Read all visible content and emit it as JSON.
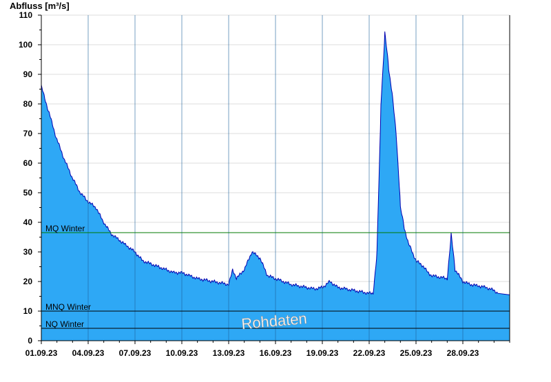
{
  "chart_data": {
    "type": "area",
    "title": "",
    "ylabel": "Abfluss [m³/s]",
    "xlabel": "",
    "ylim": [
      0,
      110
    ],
    "yticks": [
      0,
      10,
      20,
      30,
      40,
      50,
      60,
      70,
      80,
      90,
      100,
      110
    ],
    "xlim": [
      "01.09.23",
      "30.09.23"
    ],
    "xticks": [
      "01.09.23",
      "04.09.23",
      "07.09.23",
      "10.09.23",
      "13.09.23",
      "16.09.23",
      "19.09.23",
      "22.09.23",
      "25.09.23",
      "28.09.23"
    ],
    "grid": "horizontal",
    "colors": {
      "fill": "#2ea8f5",
      "line": "#0000b0",
      "mq": "#007a00",
      "ref": "#000000"
    },
    "reference_lines": [
      {
        "label": "MQ Winter",
        "value": 36.5
      },
      {
        "label": "MNQ Winter",
        "value": 10.0
      },
      {
        "label": "NQ Winter",
        "value": 4.2
      }
    ],
    "annotation": "Rohdaten",
    "series": [
      {
        "x": [
          "01.09.23 00:00",
          "01.09.23 12:00",
          "02.09.23 00:00",
          "02.09.23 12:00",
          "03.09.23 00:00",
          "03.09.23 12:00",
          "04.09.23 00:00",
          "04.09.23 12:00",
          "05.09.23 00:00",
          "05.09.23 12:00",
          "06.09.23 00:00",
          "06.09.23 12:00",
          "07.09.23 00:00",
          "07.09.23 12:00",
          "08.09.23 00:00",
          "08.09.23 12:00",
          "09.09.23 00:00",
          "09.09.23 12:00",
          "10.09.23 00:00",
          "10.09.23 12:00",
          "11.09.23 00:00",
          "11.09.23 12:00",
          "12.09.23 00:00",
          "12.09.23 12:00",
          "13.09.23 00:00",
          "13.09.23 06:00",
          "13.09.23 12:00",
          "14.09.23 00:00",
          "14.09.23 12:00",
          "15.09.23 00:00",
          "15.09.23 12:00",
          "16.09.23 00:00",
          "16.09.23 12:00",
          "17.09.23 00:00",
          "17.09.23 12:00",
          "18.09.23 00:00",
          "18.09.23 12:00",
          "19.09.23 00:00",
          "19.09.23 12:00",
          "20.09.23 00:00",
          "20.09.23 12:00",
          "21.09.23 00:00",
          "21.09.23 12:00",
          "22.09.23 00:00",
          "22.09.23 06:00",
          "22.09.23 12:00",
          "22.09.23 18:00",
          "23.09.23 00:00",
          "23.09.23 06:00",
          "23.09.23 12:00",
          "23.09.23 18:00",
          "24.09.23 00:00",
          "24.09.23 06:00",
          "24.09.23 12:00",
          "24.09.23 18:00",
          "25.09.23 00:00",
          "25.09.23 06:00",
          "25.09.23 12:00",
          "25.09.23 18:00",
          "26.09.23 00:00",
          "26.09.23 12:00",
          "27.09.23 00:00",
          "27.09.23 06:00",
          "27.09.23 12:00",
          "27.09.23 18:00",
          "28.09.23 00:00",
          "28.09.23 12:00",
          "29.09.23 00:00",
          "29.09.23 12:00",
          "30.09.23 00:00",
          "30.09.23 06:00"
        ],
        "values": [
          86,
          77,
          68,
          61,
          55,
          50,
          47,
          45,
          40,
          36,
          34,
          32,
          30,
          27,
          26,
          25,
          24,
          23,
          23,
          22,
          21,
          20.5,
          20,
          19.5,
          19,
          24,
          21,
          24,
          30,
          28,
          22,
          21,
          20,
          19,
          18.5,
          18,
          17.5,
          18,
          20,
          18,
          17.5,
          17,
          16.5,
          16,
          16,
          30,
          80,
          104,
          92,
          82,
          68,
          45,
          38,
          33,
          30,
          27,
          26,
          25,
          23,
          22,
          21.5,
          21,
          36,
          24,
          22,
          20,
          19,
          18.5,
          18,
          17,
          16
        ]
      }
    ]
  }
}
